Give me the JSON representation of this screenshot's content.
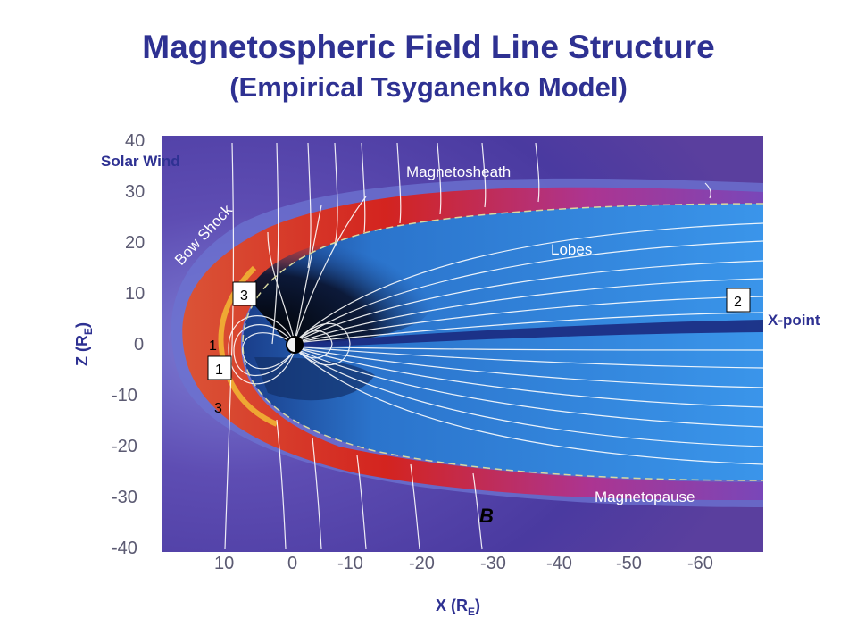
{
  "title": "Magnetospheric Field Line Structure",
  "subtitle": "(Empirical Tsyganenko Model)",
  "axes": {
    "ylabel_main": "Z (R",
    "ylabel_sub": "E",
    "ylabel_close": ")",
    "xlabel_main": "X (R",
    "xlabel_sub": "E",
    "xlabel_close": ")",
    "yticks": [
      "40",
      "30",
      "20",
      "10",
      "0",
      "-10",
      "-20",
      "-30",
      "-40"
    ],
    "xticks": [
      "10",
      "0",
      "-10",
      "-20",
      "-30",
      "-40",
      "-50",
      "-60"
    ]
  },
  "labels": {
    "solar_wind": "Solar Wind",
    "magnetosheath": "Magnetosheath",
    "bow_shock": "Bow Shock",
    "lobes": "Lobes",
    "x_point": "X-point",
    "magnetopause": "Magnetopause",
    "b": "B"
  },
  "markers": {
    "box_3": "3",
    "box_2": "2",
    "box_1": "1",
    "plain_1": "1",
    "plain_3": "3"
  },
  "colors": {
    "title": "#2e3192",
    "background_field": "#5b3fa6",
    "sheath_red": "#d4231d",
    "lobe_blue": "#2a7fd8",
    "field_line": "#ffffff"
  }
}
